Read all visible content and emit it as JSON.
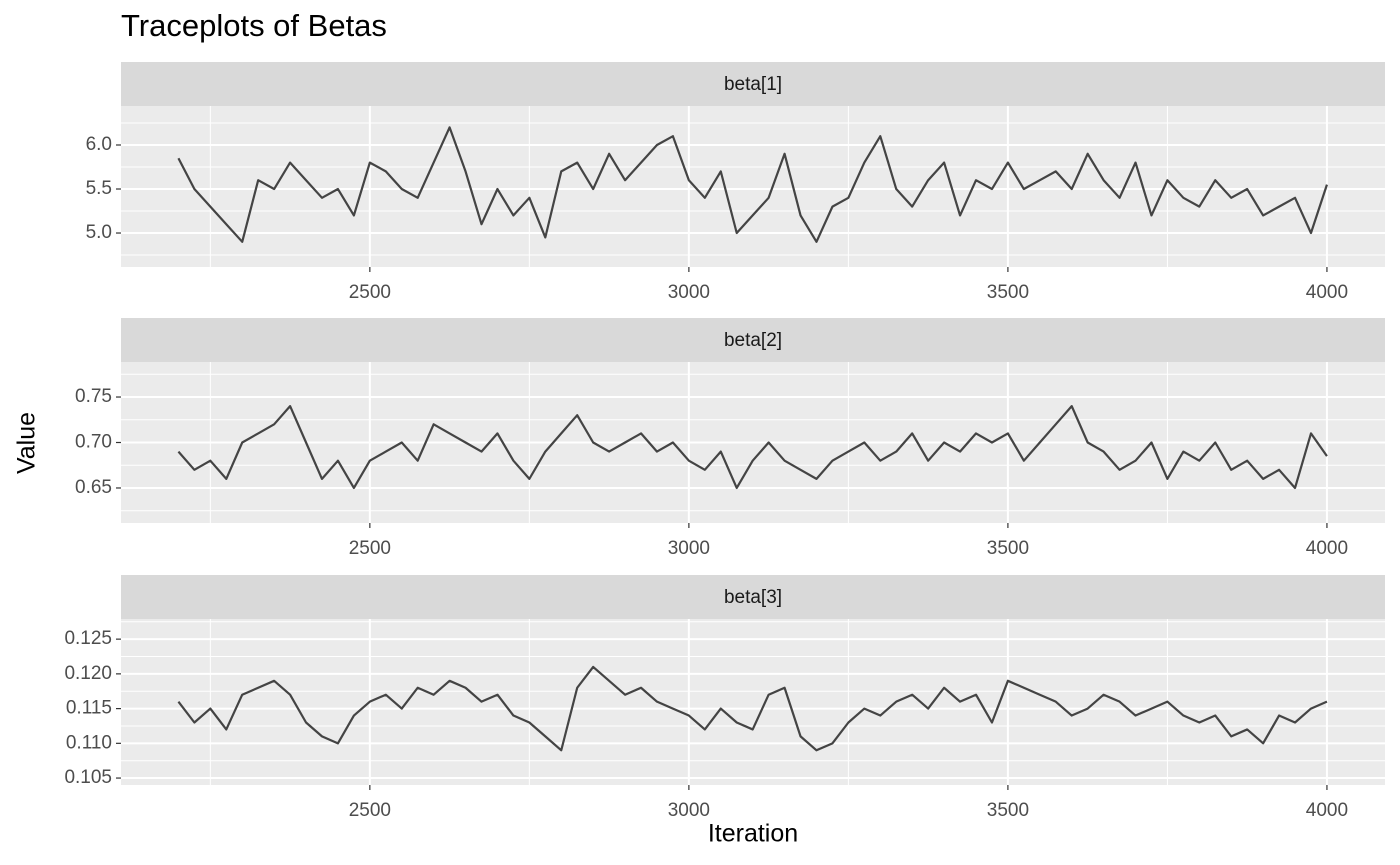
{
  "title": "Traceplots of Betas",
  "x_label": "Iteration",
  "y_label": "Value",
  "chart_data": [
    {
      "type": "line",
      "strip": "beta[1]",
      "color": "#444444",
      "grid": true,
      "xlim": [
        2110,
        4091
      ],
      "xticks": [
        2500,
        3000,
        3500,
        4000
      ],
      "ylim": [
        4.614,
        6.443
      ],
      "yticks": [
        {
          "value": 5,
          "label": "5.0"
        },
        {
          "value": 5.5,
          "label": "5.5"
        },
        {
          "value": 6,
          "label": "6.0"
        }
      ],
      "x": [
        2200,
        2225,
        2250,
        2275,
        2300,
        2325,
        2350,
        2375,
        2400,
        2425,
        2450,
        2475,
        2500,
        2525,
        2550,
        2575,
        2600,
        2625,
        2650,
        2675,
        2700,
        2725,
        2750,
        2775,
        2800,
        2825,
        2850,
        2875,
        2900,
        2925,
        2950,
        2975,
        3000,
        3025,
        3050,
        3075,
        3100,
        3125,
        3150,
        3175,
        3200,
        3225,
        3250,
        3275,
        3300,
        3325,
        3350,
        3375,
        3400,
        3425,
        3450,
        3475,
        3500,
        3525,
        3550,
        3575,
        3600,
        3625,
        3650,
        3675,
        3700,
        3725,
        3750,
        3775,
        3800,
        3825,
        3850,
        3875,
        3900,
        3925,
        3950,
        3975,
        4000
      ],
      "values": [
        5.85,
        5.5,
        5.3,
        5.1,
        4.9,
        5.6,
        5.5,
        5.8,
        5.6,
        5.4,
        5.5,
        5.2,
        5.8,
        5.7,
        5.5,
        5.4,
        5.8,
        6.2,
        5.7,
        5.1,
        5.5,
        5.2,
        5.4,
        4.95,
        5.7,
        5.8,
        5.5,
        5.9,
        5.6,
        5.8,
        6.0,
        6.1,
        5.6,
        5.4,
        5.7,
        5.0,
        5.2,
        5.4,
        5.9,
        5.2,
        4.9,
        5.3,
        5.4,
        5.8,
        6.1,
        5.5,
        5.3,
        5.6,
        5.8,
        5.2,
        5.6,
        5.5,
        5.8,
        5.5,
        5.6,
        5.7,
        5.5,
        5.9,
        5.6,
        5.4,
        5.8,
        5.2,
        5.6,
        5.4,
        5.3,
        5.6,
        5.4,
        5.5,
        5.2,
        5.3,
        5.4,
        5.0,
        5.55
      ]
    },
    {
      "type": "line",
      "strip": "beta[2]",
      "color": "#444444",
      "grid": true,
      "xlim": [
        2110,
        4091
      ],
      "xticks": [
        2500,
        3000,
        3500,
        4000
      ],
      "ylim": [
        0.6115,
        0.7885
      ],
      "yticks": [
        0.65,
        {
          "value": 0.7,
          "label": "0.70"
        },
        0.75
      ],
      "x": [
        2200,
        2225,
        2250,
        2275,
        2300,
        2325,
        2350,
        2375,
        2400,
        2425,
        2450,
        2475,
        2500,
        2525,
        2550,
        2575,
        2600,
        2625,
        2650,
        2675,
        2700,
        2725,
        2750,
        2775,
        2800,
        2825,
        2850,
        2875,
        2900,
        2925,
        2950,
        2975,
        3000,
        3025,
        3050,
        3075,
        3100,
        3125,
        3150,
        3175,
        3200,
        3225,
        3250,
        3275,
        3300,
        3325,
        3350,
        3375,
        3400,
        3425,
        3450,
        3475,
        3500,
        3525,
        3550,
        3575,
        3600,
        3625,
        3650,
        3675,
        3700,
        3725,
        3750,
        3775,
        3800,
        3825,
        3850,
        3875,
        3900,
        3925,
        3950,
        3975,
        4000
      ],
      "values": [
        0.69,
        0.67,
        0.68,
        0.66,
        0.7,
        0.71,
        0.72,
        0.74,
        0.7,
        0.66,
        0.68,
        0.65,
        0.68,
        0.69,
        0.7,
        0.68,
        0.72,
        0.71,
        0.7,
        0.69,
        0.71,
        0.68,
        0.66,
        0.69,
        0.71,
        0.73,
        0.7,
        0.69,
        0.7,
        0.71,
        0.69,
        0.7,
        0.68,
        0.67,
        0.69,
        0.65,
        0.68,
        0.7,
        0.68,
        0.67,
        0.66,
        0.68,
        0.69,
        0.7,
        0.68,
        0.69,
        0.71,
        0.68,
        0.7,
        0.69,
        0.71,
        0.7,
        0.71,
        0.68,
        0.7,
        0.72,
        0.74,
        0.7,
        0.69,
        0.67,
        0.68,
        0.7,
        0.66,
        0.69,
        0.68,
        0.7,
        0.67,
        0.68,
        0.66,
        0.67,
        0.65,
        0.71,
        0.685
      ]
    },
    {
      "type": "line",
      "strip": "beta[3]",
      "color": "#444444",
      "grid": true,
      "xlim": [
        2110,
        4091
      ],
      "xticks": [
        2500,
        3000,
        3500,
        4000
      ],
      "ylim": [
        0.104,
        0.1279
      ],
      "yticks": [
        0.105,
        {
          "value": 0.11,
          "label": "0.110"
        },
        0.115,
        {
          "value": 0.12,
          "label": "0.120"
        },
        0.125
      ],
      "x": [
        2200,
        2225,
        2250,
        2275,
        2300,
        2325,
        2350,
        2375,
        2400,
        2425,
        2450,
        2475,
        2500,
        2525,
        2550,
        2575,
        2600,
        2625,
        2650,
        2675,
        2700,
        2725,
        2750,
        2775,
        2800,
        2825,
        2850,
        2875,
        2900,
        2925,
        2950,
        2975,
        3000,
        3025,
        3050,
        3075,
        3100,
        3125,
        3150,
        3175,
        3200,
        3225,
        3250,
        3275,
        3300,
        3325,
        3350,
        3375,
        3400,
        3425,
        3450,
        3475,
        3500,
        3525,
        3550,
        3575,
        3600,
        3625,
        3650,
        3675,
        3700,
        3725,
        3750,
        3775,
        3800,
        3825,
        3850,
        3875,
        3900,
        3925,
        3950,
        3975,
        4000
      ],
      "values": [
        0.116,
        0.113,
        0.115,
        0.112,
        0.117,
        0.118,
        0.119,
        0.117,
        0.113,
        0.111,
        0.11,
        0.114,
        0.116,
        0.117,
        0.115,
        0.118,
        0.117,
        0.119,
        0.118,
        0.116,
        0.117,
        0.114,
        0.113,
        0.111,
        0.109,
        0.118,
        0.121,
        0.119,
        0.117,
        0.118,
        0.116,
        0.115,
        0.114,
        0.112,
        0.115,
        0.113,
        0.112,
        0.117,
        0.118,
        0.111,
        0.109,
        0.11,
        0.113,
        0.115,
        0.114,
        0.116,
        0.117,
        0.115,
        0.118,
        0.116,
        0.117,
        0.113,
        0.119,
        0.118,
        0.117,
        0.116,
        0.114,
        0.115,
        0.117,
        0.116,
        0.114,
        0.115,
        0.116,
        0.114,
        0.113,
        0.114,
        0.111,
        0.112,
        0.11,
        0.114,
        0.113,
        0.115,
        0.116
      ]
    }
  ]
}
